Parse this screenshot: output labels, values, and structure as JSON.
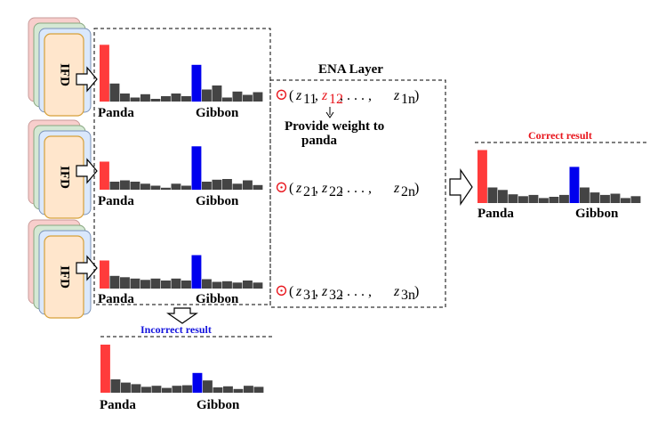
{
  "ifd_label": "IFD",
  "ena_title": "ENA Layer",
  "provide_weight_line1": "Provide weight to",
  "provide_weight_line2": "panda",
  "correct_label": "Correct result",
  "incorrect_label": "Incorrect result",
  "class_left": "Panda",
  "class_right": "Gibbon",
  "odot": "⊙",
  "vectors": [
    {
      "open": "(",
      "z1": "z",
      "s1": "11",
      "z2": "z",
      "s2": "12",
      "dots": ", . . . ,",
      "z3": "z",
      "s3": "1n",
      "close": ")"
    },
    {
      "open": "(",
      "z1": "z",
      "s1": "21",
      "z2": "z",
      "s2": "22",
      "dots": ", . . . ,",
      "z3": "z",
      "s3": "2n",
      "close": ")"
    },
    {
      "open": "(",
      "z1": "z",
      "s1": "31",
      "z2": "z",
      "s2": "32",
      "dots": ", . . . ,",
      "z3": "z",
      "s3": "3n",
      "close": ")"
    }
  ],
  "colors": {
    "bar_gray": "#444444",
    "panda_red": "#ff3b3b",
    "gibbon_blue": "#0000ee",
    "correct_text": "#e8141b",
    "incorrect_text": "#1414dd",
    "highlight_red": "#e8141b",
    "ifd_fill": "#ffe6cc",
    "ifd_stroke": "#d6a13a",
    "layer_blue": "#dae8fc",
    "layer_green": "#d5e8d4",
    "layer_pink": "#f8cecc"
  },
  "histograms": [
    {
      "values": [
        0.15,
        0.27,
        0.12,
        0.06,
        0.11,
        0.04,
        0.08,
        0.12,
        0.08,
        0.12,
        0.18,
        0.24,
        0.06,
        0.15,
        0.1,
        0.14
      ],
      "panda_index": 0,
      "gibbon_index": 9
    },
    {
      "values": [
        0.16,
        0.12,
        0.14,
        0.12,
        0.09,
        0.06,
        0.03,
        0.09,
        0.06,
        0.09,
        0.12,
        0.15,
        0.16,
        0.09,
        0.14,
        0.07
      ],
      "panda_index": 0,
      "gibbon_index": 9
    },
    {
      "values": [
        0.25,
        0.19,
        0.17,
        0.15,
        0.13,
        0.15,
        0.12,
        0.15,
        0.12,
        0.09,
        0.14,
        0.1,
        0.11,
        0.09,
        0.12,
        0.09
      ],
      "panda_index": 0,
      "gibbon_index": 9
    },
    {
      "values": [
        0.38,
        0.25,
        0.21,
        0.14,
        0.11,
        0.13,
        0.08,
        0.1,
        0.13,
        0.17,
        0.25,
        0.17,
        0.13,
        0.15,
        0.08,
        0.11
      ],
      "panda_index": 0,
      "gibbon_index": 9
    },
    {
      "values": [
        0.25,
        0.25,
        0.19,
        0.16,
        0.11,
        0.13,
        0.09,
        0.13,
        0.14,
        0.17,
        0.23,
        0.1,
        0.12,
        0.07,
        0.13,
        0.11
      ],
      "panda_index": 0,
      "gibbon_index": 9
    }
  ],
  "histogram_peaks": [
    {
      "panda": 0.85,
      "gibbon": 0.55
    },
    {
      "panda": 0.42,
      "gibbon": 0.65
    },
    {
      "panda": 0.42,
      "gibbon": 0.5
    },
    {
      "panda": 0.85,
      "gibbon": 0.58
    },
    {
      "panda": 0.9,
      "gibbon": 0.37
    }
  ]
}
